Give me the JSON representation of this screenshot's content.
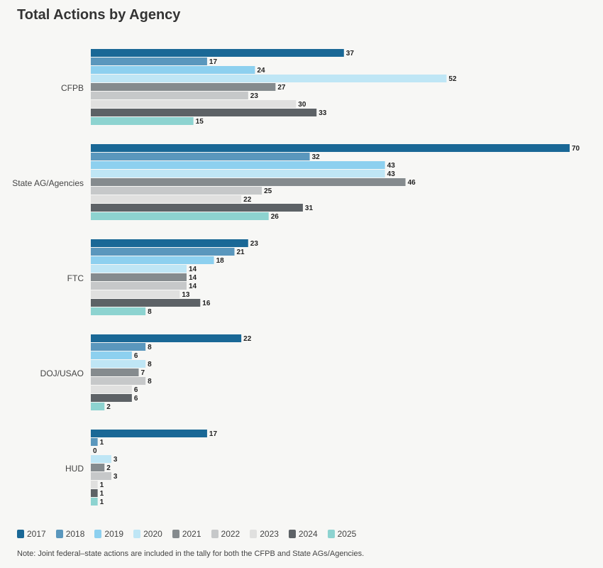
{
  "chart_data": {
    "type": "bar",
    "orientation": "horizontal",
    "title": "Total Actions by Agency",
    "categories": [
      "CFPB",
      "State AG/Agencies",
      "FTC",
      "DOJ/USAO",
      "HUD"
    ],
    "series": [
      {
        "name": "2017",
        "color": "#1a6896",
        "values": [
          37,
          70,
          23,
          22,
          17
        ]
      },
      {
        "name": "2018",
        "color": "#5a97bd",
        "values": [
          17,
          32,
          21,
          8,
          1
        ]
      },
      {
        "name": "2019",
        "color": "#8dd0ef",
        "values": [
          24,
          43,
          18,
          6,
          0
        ]
      },
      {
        "name": "2020",
        "color": "#bfe6f5",
        "values": [
          52,
          43,
          14,
          8,
          3
        ]
      },
      {
        "name": "2021",
        "color": "#858b8e",
        "values": [
          27,
          46,
          14,
          7,
          2
        ]
      },
      {
        "name": "2022",
        "color": "#c6c8c9",
        "values": [
          23,
          25,
          14,
          8,
          3
        ]
      },
      {
        "name": "2023",
        "color": "#e0e0df",
        "values": [
          30,
          22,
          13,
          6,
          1
        ]
      },
      {
        "name": "2024",
        "color": "#5d6266",
        "values": [
          33,
          31,
          16,
          6,
          1
        ]
      },
      {
        "name": "2025",
        "color": "#8dd3d0",
        "values": [
          15,
          26,
          8,
          2,
          1
        ]
      }
    ],
    "xlim": [
      0,
      70
    ],
    "legend_position": "bottom-left",
    "grid": false
  },
  "note": "Note: Joint federal–state actions are included in the tally for both the CFPB and State AGs/Agencies."
}
